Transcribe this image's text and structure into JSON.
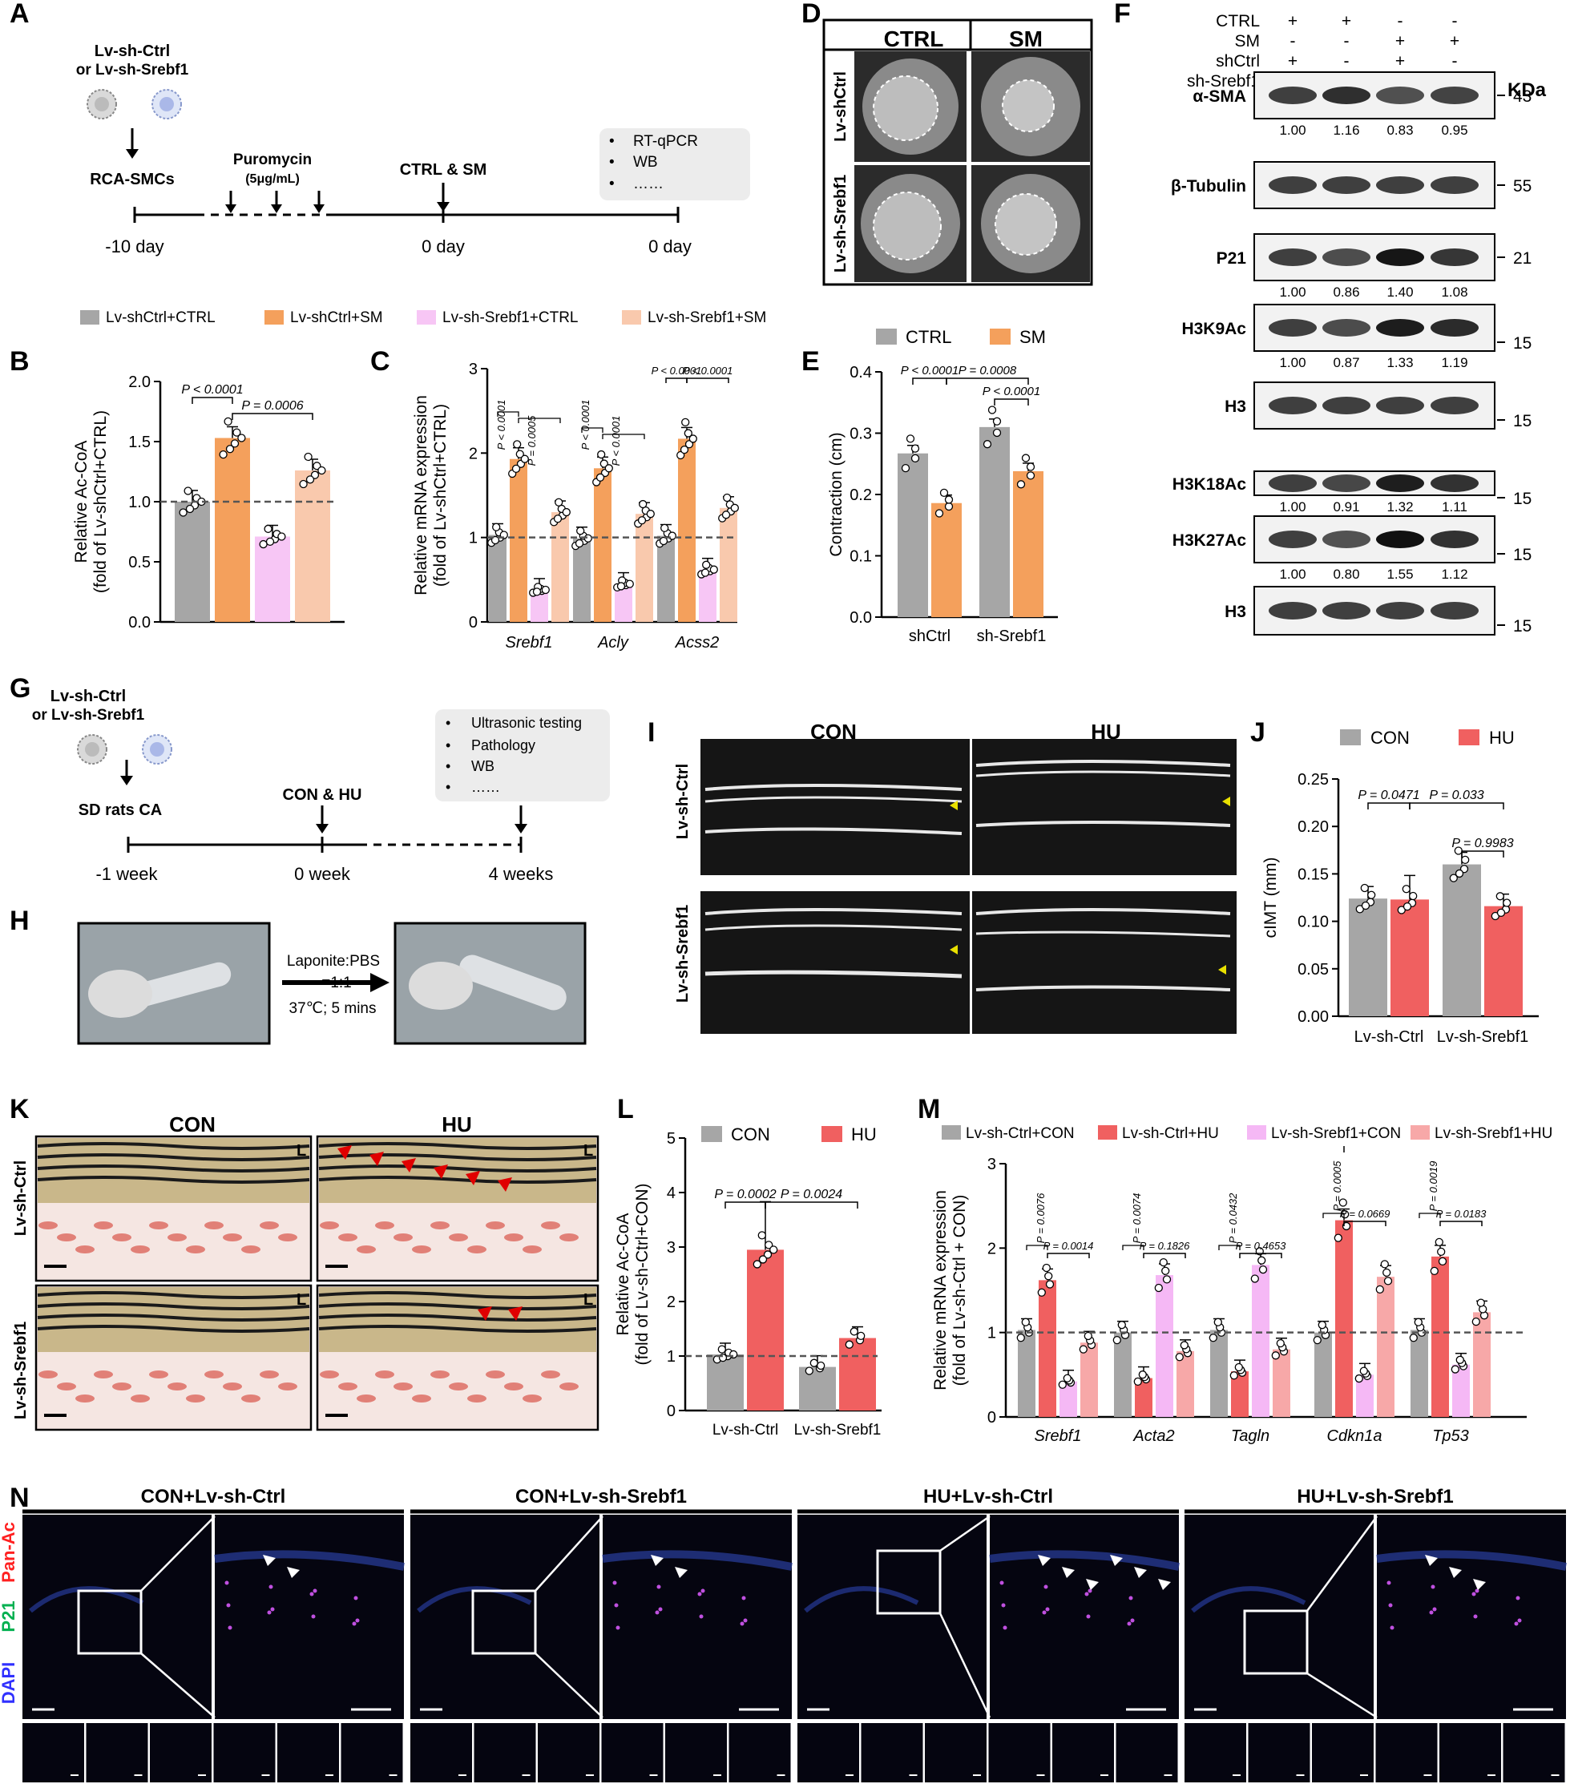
{
  "panel_letters": [
    "A",
    "B",
    "C",
    "D",
    "E",
    "F",
    "G",
    "H",
    "I",
    "J",
    "K",
    "L",
    "M",
    "N"
  ],
  "A": {
    "virus_label": "Lv-sh-Ctrl",
    "virus_label2": "or Lv-sh-Srebf1",
    "cells": "RCA-SMCs",
    "puromycin": "Puromycin",
    "puro_conc": "(5μg/mL)",
    "treat": "CTRL & SM",
    "assays": [
      "RT-qPCR",
      "WB",
      "……"
    ],
    "timepoints": [
      "-10 day",
      "0 day",
      "0 day"
    ]
  },
  "legend_BC": [
    "Lv-shCtrl+CTRL",
    "Lv-shCtrl+SM",
    "Lv-sh-Srebf1+CTRL",
    "Lv-sh-Srebf1+SM"
  ],
  "D": {
    "cols": [
      "CTRL",
      "SM"
    ],
    "rows": [
      "Lv-shCtrl",
      "Lv-sh-Srebf1"
    ]
  },
  "F": {
    "conditions": [
      "CTRL",
      "SM",
      "shCtrl",
      "sh-Srebf1"
    ],
    "signs": [
      [
        "+",
        "+",
        "-",
        "-"
      ],
      [
        "-",
        "-",
        "+",
        "+"
      ],
      [
        "+",
        "-",
        "+",
        "-"
      ],
      [
        "-",
        "+",
        "-",
        "+"
      ]
    ],
    "kda_label": "KDa",
    "blots": [
      {
        "name": "α-SMA",
        "kda": "43",
        "values": [
          "1.00",
          "1.16",
          "0.83",
          "0.95"
        ]
      },
      {
        "name": "β-Tubulin",
        "kda": "55",
        "values": []
      },
      {
        "name": "P21",
        "kda": "21",
        "values": [
          "1.00",
          "0.86",
          "1.40",
          "1.08"
        ]
      },
      {
        "name": "H3K9Ac",
        "kda": "15",
        "values": [
          "1.00",
          "0.87",
          "1.33",
          "1.19"
        ]
      },
      {
        "name": "H3",
        "kda": "15",
        "values": []
      },
      {
        "name": "H3K18Ac",
        "kda": "15",
        "values": [
          "1.00",
          "0.91",
          "1.32",
          "1.11"
        ]
      },
      {
        "name": "H3K27Ac",
        "kda": "15",
        "values": [
          "1.00",
          "0.80",
          "1.55",
          "1.12"
        ]
      },
      {
        "name": "H3",
        "kda": "15",
        "values": []
      }
    ]
  },
  "G": {
    "virus_label": "Lv-sh-Ctrl",
    "virus_label2": "or Lv-sh-Srebf1",
    "animals": "SD rats CA",
    "treat": "CON & HU",
    "assays": [
      "Ultrasonic testing",
      "Pathology",
      "WB",
      "……"
    ],
    "timepoints": [
      "-1 week",
      "0 week",
      "4 weeks"
    ]
  },
  "H": {
    "arrow_top": "Laponite:PBS",
    "arrow_mid": "=1:1",
    "arrow_bottom": "37℃; 5 mins"
  },
  "I": {
    "cols": [
      "CON",
      "HU"
    ],
    "rows": [
      "Lv-sh-Ctrl",
      "Lv-sh-Srebf1"
    ]
  },
  "K": {
    "cols": [
      "CON",
      "HU"
    ],
    "rows": [
      "Lv-sh-Ctrl",
      "Lv-sh-Srebf1"
    ],
    "lumen": "L"
  },
  "N": {
    "cols": [
      "CON+Lv-sh-Ctrl",
      "CON+Lv-sh-Srebf1",
      "HU+Lv-sh-Ctrl",
      "HU+Lv-sh-Srebf1"
    ],
    "stain_labels": [
      "DAPI",
      "P21",
      "Pan-Ac"
    ],
    "stain_colors": [
      "#3030ff",
      "#00b050",
      "#ff2020"
    ]
  },
  "colors": {
    "gray": "#a6a6a6",
    "orange": "#f4a05c",
    "pink": "#f7c6f5",
    "peach": "#f9c9ad",
    "red": "#f06060",
    "pinkM": "#f5b8f5",
    "salmon": "#f7a8a8"
  },
  "chart_data": [
    {
      "id": "B",
      "type": "bar",
      "ylabel": "Relative Ac-CoA\n(fold of Lv-shCtrl+CTRL)",
      "ylim": [
        0,
        2
      ],
      "ticks": [
        "0.0",
        "0.5",
        "1.0",
        "1.5",
        "2.0"
      ],
      "categories": [
        "Lv-shCtrl+CTRL",
        "Lv-shCtrl+SM",
        "Lv-sh-Srebf1+CTRL",
        "Lv-sh-Srebf1+SM"
      ],
      "values": [
        1.0,
        1.53,
        0.71,
        1.26
      ],
      "annotations": [
        "P < 0.0001",
        "P = 0.0006"
      ]
    },
    {
      "id": "C",
      "type": "bar",
      "ylabel": "Relative mRNA expression\n(fold of Lv-shCtrl+CTRL)",
      "ylim": [
        0,
        3
      ],
      "ticks": [
        "0",
        "1",
        "2",
        "3"
      ],
      "categories": [
        "Srebf1",
        "Acly",
        "Acss2"
      ],
      "series": [
        {
          "name": "Lv-shCtrl+CTRL",
          "values": [
            1.03,
            0.99,
            1.02
          ]
        },
        {
          "name": "Lv-shCtrl+SM",
          "values": [
            1.93,
            1.82,
            2.17
          ]
        },
        {
          "name": "Lv-sh-Srebf1+CTRL",
          "values": [
            0.38,
            0.45,
            0.62
          ]
        },
        {
          "name": "Lv-sh-Srebf1+SM",
          "values": [
            1.3,
            1.28,
            1.35
          ]
        }
      ],
      "annotations": [
        "P < 0.0001",
        "P = 0.0005",
        "P < 0.0001",
        "P < 0.0001",
        "P < 0.0001",
        "P < 0.0001"
      ]
    },
    {
      "id": "E",
      "type": "bar",
      "ylabel": "Contraction (cm)",
      "ylim": [
        0,
        0.4
      ],
      "ticks": [
        "0.0",
        "0.1",
        "0.2",
        "0.3",
        "0.4"
      ],
      "categories": [
        "shCtrl",
        "sh-Srebf1"
      ],
      "series": [
        {
          "name": "CTRL",
          "values": [
            0.267,
            0.31
          ]
        },
        {
          "name": "SM",
          "values": [
            0.186,
            0.238
          ]
        }
      ],
      "annotations": [
        "P < 0.0001",
        "P = 0.0008",
        "P < 0.0001"
      ]
    },
    {
      "id": "J",
      "type": "bar",
      "ylabel": "cIMT (mm)",
      "ylim": [
        0,
        0.25
      ],
      "ticks": [
        "0.00",
        "0.05",
        "0.10",
        "0.15",
        "0.20",
        "0.25"
      ],
      "categories": [
        "Lv-sh-Ctrl",
        "Lv-sh-Srebf1"
      ],
      "series": [
        {
          "name": "CON",
          "values": [
            0.124,
            0.16
          ]
        },
        {
          "name": "HU",
          "values": [
            0.123,
            0.116
          ]
        }
      ],
      "annotations": [
        "P = 0.0471",
        "P = 0.033",
        "P = 0.9983"
      ]
    },
    {
      "id": "L",
      "type": "bar",
      "ylabel": "Relative Ac-CoA\n(fold of Lv-sh-Ctrl+CON)",
      "ylim": [
        0,
        5
      ],
      "ticks": [
        "0",
        "1",
        "2",
        "3",
        "4",
        "5"
      ],
      "categories": [
        "Lv-sh-Ctrl",
        "Lv-sh-Srebf1"
      ],
      "series": [
        {
          "name": "CON",
          "values": [
            1.03,
            0.8
          ]
        },
        {
          "name": "HU",
          "values": [
            2.95,
            1.33
          ]
        }
      ],
      "annotations": [
        "P = 0.0002",
        "P = 0.0024"
      ]
    },
    {
      "id": "M",
      "type": "bar",
      "ylabel": "Relative mRNA expression\n(fold of Lv-sh-Ctrl + CON)",
      "ylim": [
        0,
        3
      ],
      "ticks": [
        "0",
        "1",
        "2",
        "3"
      ],
      "categories": [
        "Srebf1",
        "Acta2",
        "Tagln",
        "Cdkn1a",
        "Tp53"
      ],
      "series": [
        {
          "name": "Lv-sh-Ctrl+CON",
          "values": [
            1.03,
            1.0,
            1.03,
            1.0,
            1.03
          ]
        },
        {
          "name": "Lv-sh-Ctrl+HU",
          "values": [
            1.62,
            0.46,
            0.54,
            2.33,
            1.9
          ]
        },
        {
          "name": "Lv-sh-Srebf1+CON",
          "values": [
            0.42,
            1.68,
            1.8,
            0.5,
            0.62
          ]
        },
        {
          "name": "Lv-sh-Srebf1+HU",
          "values": [
            0.88,
            0.78,
            0.8,
            1.66,
            1.24
          ]
        }
      ],
      "annotations": [
        "P = 0.0076",
        "P = 0.0014",
        "P = 0.0074",
        "P = 0.1826",
        "P = 0.0432",
        "P = 0.4653",
        "P = 0.0005",
        "P = 0.0669",
        "P = 0.0019",
        "P = 0.0183"
      ]
    }
  ]
}
